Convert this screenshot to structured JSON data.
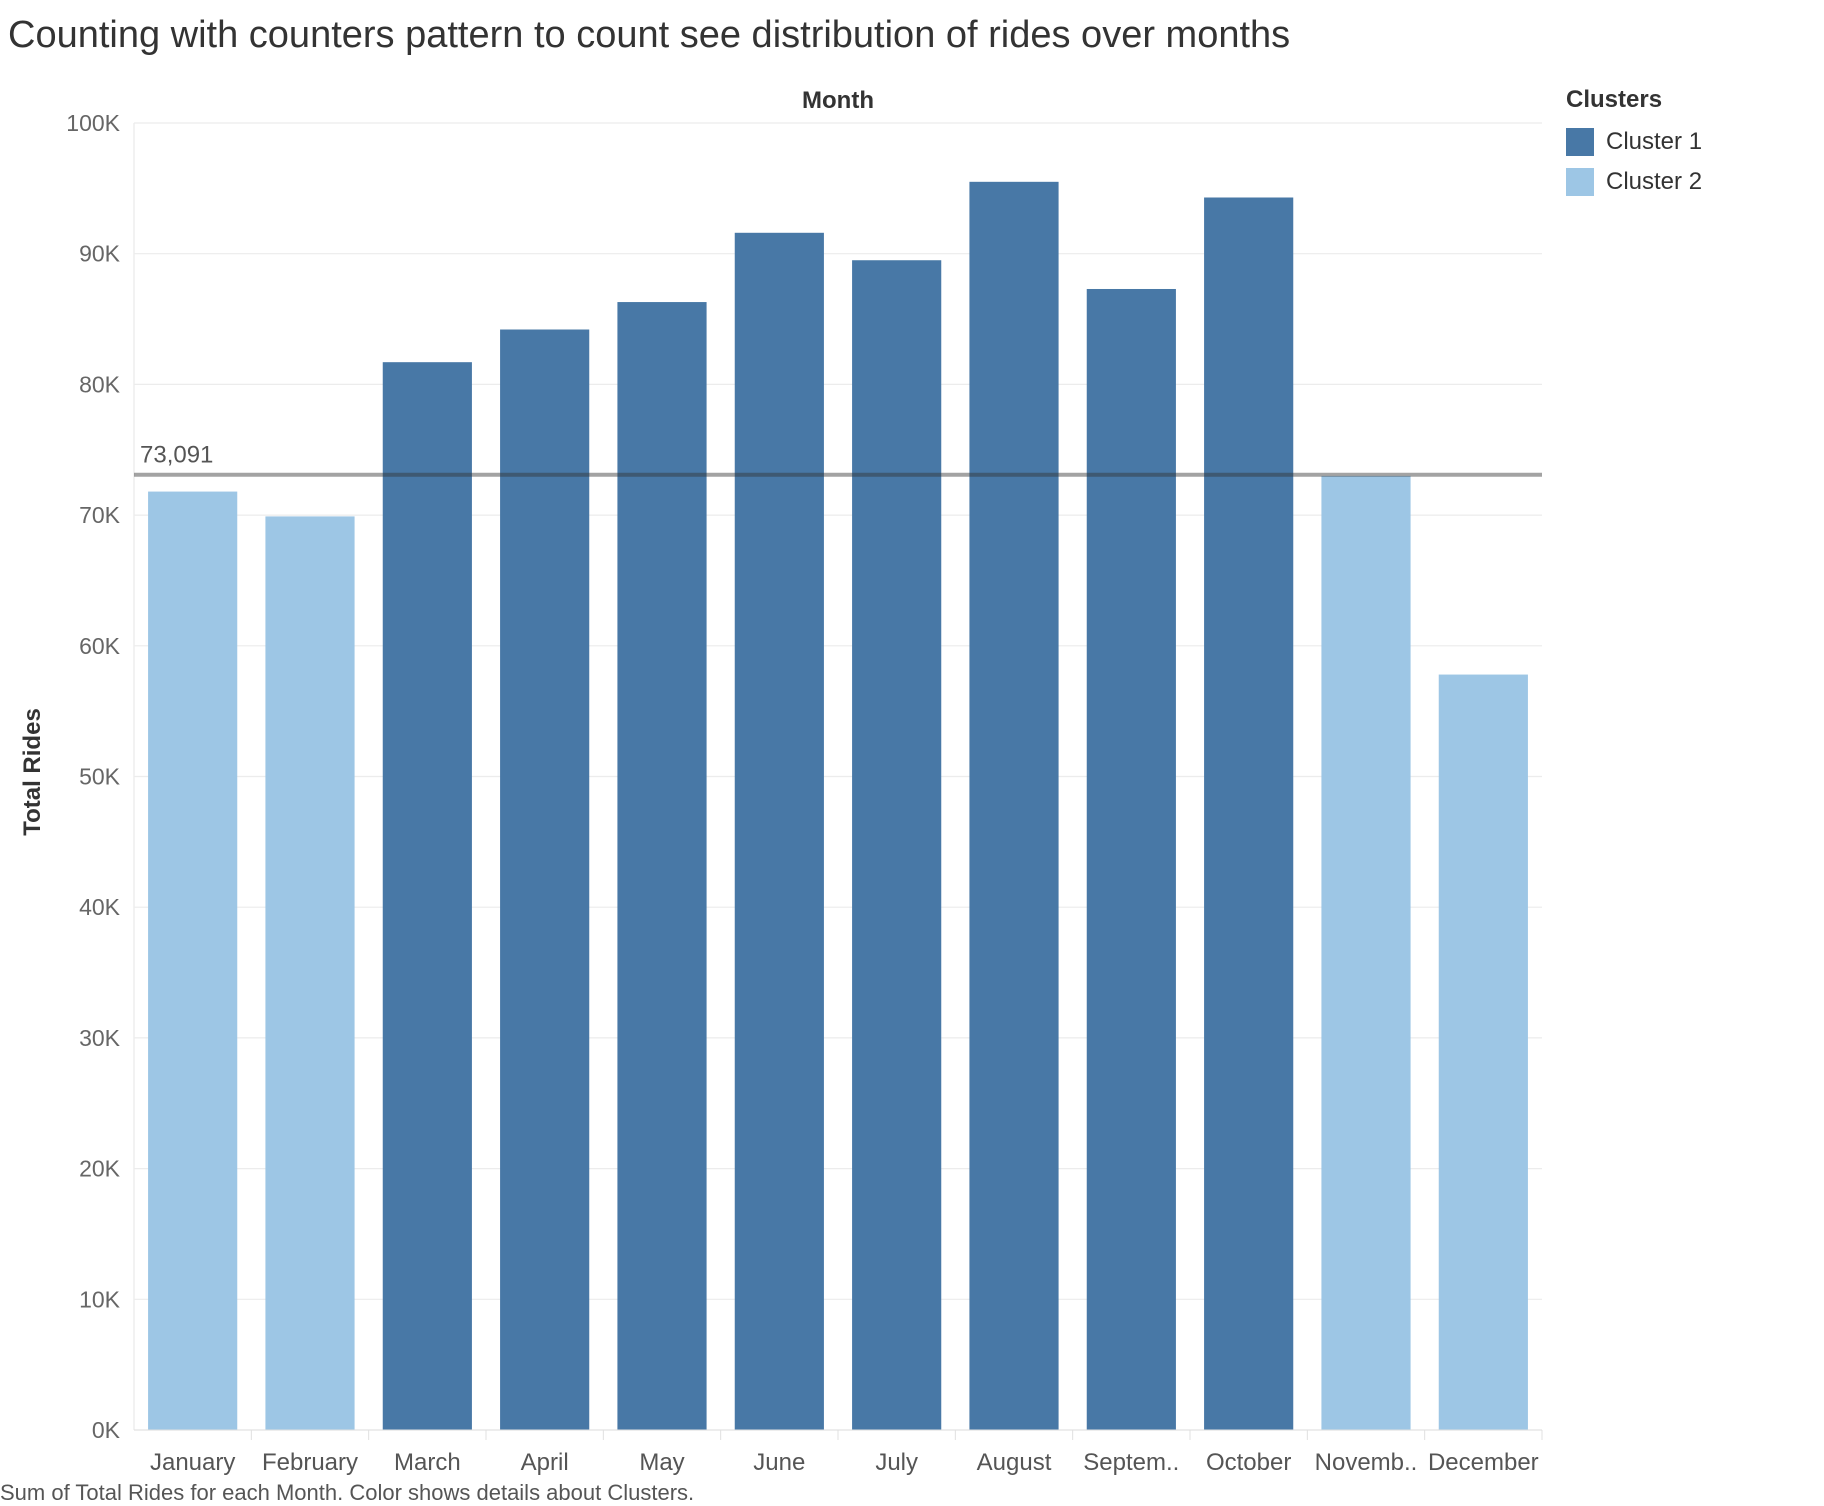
{
  "chart_data": {
    "type": "bar",
    "title": "Counting with counters pattern to count see distribution of rides over months",
    "xlabel": "Month",
    "ylabel": "Total Rides",
    "caption": "Sum of Total Rides for each Month.  Color shows details about Clusters.",
    "ylim": [
      0,
      100000
    ],
    "yticks": [
      0,
      10000,
      20000,
      30000,
      40000,
      50000,
      60000,
      70000,
      80000,
      90000,
      100000
    ],
    "ytick_labels": [
      "0K",
      "10K",
      "20K",
      "30K",
      "40K",
      "50K",
      "60K",
      "70K",
      "80K",
      "90K",
      "100K"
    ],
    "categories": [
      "January",
      "February",
      "March",
      "April",
      "May",
      "June",
      "July",
      "August",
      "Septem..",
      "October",
      "Novemb..",
      "December"
    ],
    "values": [
      71800,
      69900,
      81700,
      84200,
      86300,
      91600,
      89500,
      95500,
      87300,
      94300,
      73000,
      57800
    ],
    "clusters": [
      "Cluster 2",
      "Cluster 2",
      "Cluster 1",
      "Cluster 1",
      "Cluster 1",
      "Cluster 1",
      "Cluster 1",
      "Cluster 1",
      "Cluster 1",
      "Cluster 1",
      "Cluster 2",
      "Cluster 2"
    ],
    "reference_line": {
      "value": 73091,
      "label": "73,091"
    },
    "legend": {
      "title": "Clusters",
      "placement": "top-right",
      "items": [
        {
          "name": "Cluster 1",
          "color": "#4878a6"
        },
        {
          "name": "Cluster 2",
          "color": "#9dc6e5"
        }
      ]
    },
    "grid": true
  }
}
